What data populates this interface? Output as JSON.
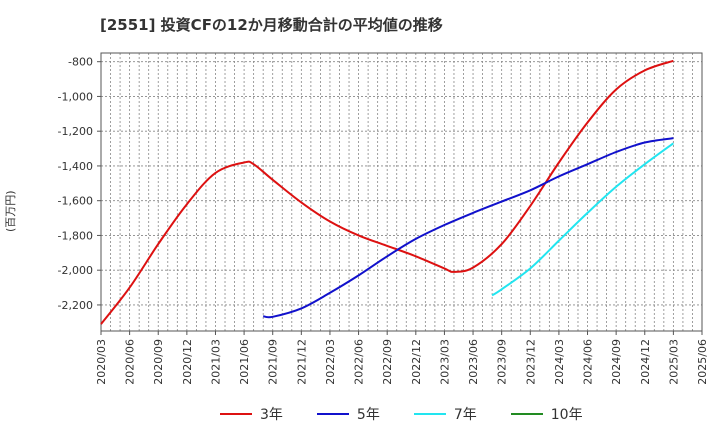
{
  "chart_data": {
    "type": "line",
    "title": "[2551]  投資CFの12か月移動合計の平均値の推移",
    "ylabel": "(百万円)",
    "xlabel": "",
    "ylim": [
      -2350,
      -750
    ],
    "yticks": [
      -800,
      -1000,
      -1200,
      -1400,
      -1600,
      -1800,
      -2000,
      -2200
    ],
    "ytick_labels": [
      "-800",
      "-1,000",
      "-1,200",
      "-1,400",
      "-1,600",
      "-1,800",
      "-2,000",
      "-2,200"
    ],
    "xticks": [
      "2020/03",
      "2020/06",
      "2020/09",
      "2020/12",
      "2021/03",
      "2021/06",
      "2021/09",
      "2021/12",
      "2022/03",
      "2022/06",
      "2022/09",
      "2022/12",
      "2023/03",
      "2023/06",
      "2023/09",
      "2023/12",
      "2024/03",
      "2024/06",
      "2024/09",
      "2024/12",
      "2025/03",
      "2025/06"
    ],
    "grid": true,
    "legend_position": "bottom",
    "series": [
      {
        "name": "3年",
        "color": "#dd1111",
        "data": [
          [
            "2020/03",
            -2310
          ],
          [
            "2020/06",
            -2100
          ],
          [
            "2020/09",
            -1850
          ],
          [
            "2020/12",
            -1620
          ],
          [
            "2021/03",
            -1440
          ],
          [
            "2021/06",
            -1380
          ],
          [
            "2021/07",
            -1390
          ],
          [
            "2021/09",
            -1480
          ],
          [
            "2021/12",
            -1610
          ],
          [
            "2022/03",
            -1720
          ],
          [
            "2022/06",
            -1800
          ],
          [
            "2022/09",
            -1860
          ],
          [
            "2022/12",
            -1920
          ],
          [
            "2023/03",
            -1990
          ],
          [
            "2023/04",
            -2010
          ],
          [
            "2023/06",
            -1985
          ],
          [
            "2023/09",
            -1850
          ],
          [
            "2023/12",
            -1630
          ],
          [
            "2024/03",
            -1380
          ],
          [
            "2024/06",
            -1150
          ],
          [
            "2024/09",
            -960
          ],
          [
            "2024/12",
            -850
          ],
          [
            "2025/03",
            -795
          ]
        ]
      },
      {
        "name": "5年",
        "color": "#1111cc",
        "data": [
          [
            "2021/08",
            -2265
          ],
          [
            "2021/09",
            -2268
          ],
          [
            "2021/12",
            -2220
          ],
          [
            "2022/03",
            -2130
          ],
          [
            "2022/06",
            -2030
          ],
          [
            "2022/09",
            -1920
          ],
          [
            "2022/12",
            -1820
          ],
          [
            "2023/03",
            -1740
          ],
          [
            "2023/06",
            -1670
          ],
          [
            "2023/09",
            -1605
          ],
          [
            "2023/12",
            -1540
          ],
          [
            "2024/03",
            -1460
          ],
          [
            "2024/06",
            -1390
          ],
          [
            "2024/09",
            -1320
          ],
          [
            "2024/12",
            -1265
          ],
          [
            "2025/03",
            -1240
          ]
        ]
      },
      {
        "name": "7年",
        "color": "#22e5f0",
        "data": [
          [
            "2023/08",
            -2145
          ],
          [
            "2023/09",
            -2110
          ],
          [
            "2023/12",
            -1990
          ],
          [
            "2024/03",
            -1830
          ],
          [
            "2024/06",
            -1670
          ],
          [
            "2024/09",
            -1520
          ],
          [
            "2024/12",
            -1390
          ],
          [
            "2025/03",
            -1270
          ]
        ]
      },
      {
        "name": "10年",
        "color": "#228b22",
        "data": []
      }
    ]
  }
}
